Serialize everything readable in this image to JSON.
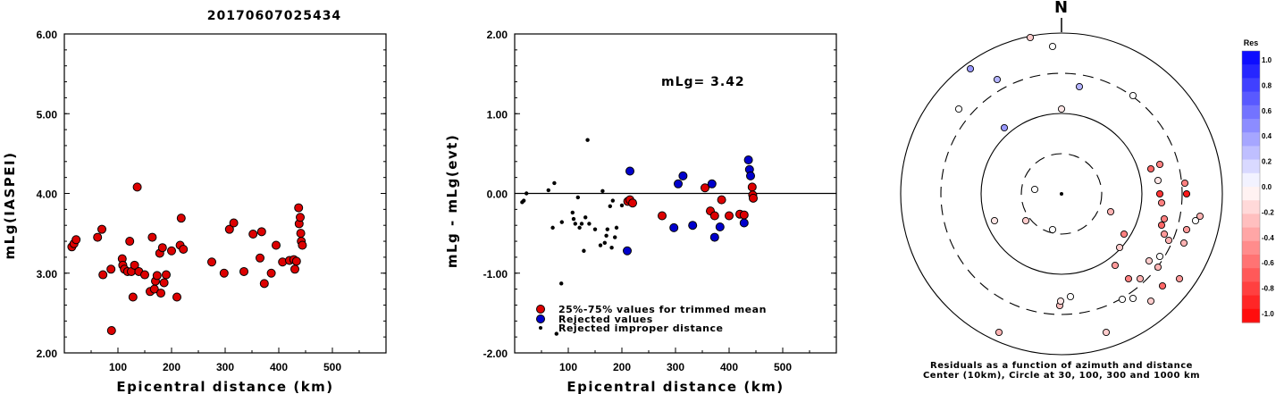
{
  "title": "20170607025434",
  "colors": {
    "event": "#dd0000",
    "rejected": "#0000cc",
    "improper": "#000000",
    "positive_res": "#0000ff",
    "negative_res": "#ff0000"
  },
  "chart_data": [
    {
      "name": "left",
      "type": "scatter",
      "xlabel": "Epicentral distance (km)",
      "ylabel": "mLg(IASPEI)",
      "xlim": [
        0,
        600
      ],
      "ylim": [
        2.0,
        6.0
      ],
      "xticks": [
        "100",
        "200",
        "300",
        "400",
        "500"
      ],
      "yticks": [
        "2.00",
        "3.00",
        "4.00",
        "5.00",
        "6.00"
      ],
      "points": [
        [
          14,
          3.33
        ],
        [
          18,
          3.37
        ],
        [
          22,
          3.42
        ],
        [
          62,
          3.45
        ],
        [
          70,
          3.55
        ],
        [
          72,
          2.98
        ],
        [
          87,
          3.05
        ],
        [
          88,
          2.28
        ],
        [
          108,
          3.18
        ],
        [
          109,
          3.1
        ],
        [
          112,
          3.05
        ],
        [
          118,
          3.02
        ],
        [
          122,
          3.4
        ],
        [
          125,
          3.02
        ],
        [
          128,
          2.7
        ],
        [
          131,
          3.1
        ],
        [
          136,
          4.08
        ],
        [
          139,
          3.02
        ],
        [
          150,
          2.98
        ],
        [
          160,
          2.77
        ],
        [
          164,
          3.45
        ],
        [
          168,
          2.8
        ],
        [
          170,
          2.9
        ],
        [
          173,
          2.97
        ],
        [
          178,
          3.25
        ],
        [
          180,
          2.75
        ],
        [
          183,
          3.32
        ],
        [
          186,
          2.88
        ],
        [
          190,
          2.98
        ],
        [
          200,
          3.28
        ],
        [
          210,
          2.7
        ],
        [
          216,
          3.35
        ],
        [
          218,
          3.69
        ],
        [
          222,
          3.3
        ],
        [
          275,
          3.14
        ],
        [
          298,
          3.0
        ],
        [
          308,
          3.55
        ],
        [
          316,
          3.63
        ],
        [
          335,
          3.02
        ],
        [
          352,
          3.49
        ],
        [
          365,
          3.19
        ],
        [
          368,
          3.52
        ],
        [
          373,
          2.87
        ],
        [
          386,
          3.0
        ],
        [
          395,
          3.35
        ],
        [
          407,
          3.14
        ],
        [
          420,
          3.16
        ],
        [
          428,
          3.17
        ],
        [
          430,
          3.05
        ],
        [
          433,
          3.15
        ],
        [
          437,
          3.82
        ],
        [
          438,
          3.62
        ],
        [
          440,
          3.7
        ],
        [
          441,
          3.5
        ],
        [
          442,
          3.4
        ],
        [
          444,
          3.35
        ]
      ]
    },
    {
      "name": "middle",
      "type": "scatter",
      "xlabel": "Epicentral distance (km)",
      "ylabel": "mLg - mLg(evt)",
      "annotation": "mLg= 3.42",
      "xlim": [
        0,
        600
      ],
      "ylim": [
        -2.0,
        2.0
      ],
      "xticks": [
        "100",
        "200",
        "300",
        "400",
        "500"
      ],
      "yticks": [
        "-2.00",
        "-1.00",
        "0.00",
        "1.00",
        "2.00"
      ],
      "legend": [
        "25%-75% values for trimmed mean",
        "Rejected values",
        "Rejected improper distance"
      ],
      "kept": [
        [
          211,
          -0.1
        ],
        [
          215,
          -0.08
        ],
        [
          220,
          -0.12
        ],
        [
          275,
          -0.28
        ],
        [
          355,
          0.07
        ],
        [
          365,
          -0.22
        ],
        [
          373,
          -0.28
        ],
        [
          386,
          -0.08
        ],
        [
          400,
          -0.28
        ],
        [
          420,
          -0.26
        ],
        [
          428,
          -0.27
        ],
        [
          443,
          0.08
        ],
        [
          444,
          -0.02
        ],
        [
          445,
          -0.06
        ]
      ],
      "rejected": [
        [
          215,
          0.28
        ],
        [
          210,
          -0.72
        ],
        [
          297,
          -0.43
        ],
        [
          305,
          0.12
        ],
        [
          314,
          0.22
        ],
        [
          332,
          -0.4
        ],
        [
          368,
          0.12
        ],
        [
          373,
          -0.55
        ],
        [
          383,
          -0.42
        ],
        [
          428,
          -0.37
        ],
        [
          436,
          0.42
        ],
        [
          438,
          0.3
        ],
        [
          440,
          0.22
        ]
      ],
      "improper": [
        [
          14,
          -0.11
        ],
        [
          17,
          -0.09
        ],
        [
          22,
          0.0
        ],
        [
          63,
          0.04
        ],
        [
          71,
          -0.43
        ],
        [
          74,
          0.13
        ],
        [
          78,
          -1.76
        ],
        [
          87,
          -1.13
        ],
        [
          88,
          -0.36
        ],
        [
          108,
          -0.24
        ],
        [
          110,
          -0.32
        ],
        [
          113,
          -0.38
        ],
        [
          118,
          -0.05
        ],
        [
          121,
          -0.43
        ],
        [
          125,
          -0.38
        ],
        [
          129,
          -0.72
        ],
        [
          132,
          -0.3
        ],
        [
          136,
          0.67
        ],
        [
          139,
          -0.38
        ],
        [
          150,
          -0.45
        ],
        [
          160,
          -0.65
        ],
        [
          164,
          0.03
        ],
        [
          168,
          -0.62
        ],
        [
          171,
          -0.53
        ],
        [
          173,
          -0.45
        ],
        [
          178,
          -0.16
        ],
        [
          181,
          -0.68
        ],
        [
          183,
          -0.09
        ],
        [
          187,
          -0.55
        ],
        [
          190,
          -0.43
        ],
        [
          200,
          -0.15
        ]
      ]
    },
    {
      "name": "right",
      "type": "scatter",
      "north_label": "N",
      "colorbar_title": "Res",
      "colorbar_ticks": [
        "1.0",
        "0.8",
        "0.6",
        "0.4",
        "0.2",
        "0.0",
        "-0.2",
        "-0.4",
        "-0.6",
        "-0.8",
        "-1.0"
      ],
      "caption": [
        "Residuals as a function of azimuth and distance",
        "Center (10km), Circle at 30, 100, 300 and 1000 km"
      ],
      "points_xy_res": [
        [
          -115,
          95,
          0.0
        ],
        [
          -75,
          -30,
          -0.1
        ],
        [
          -70,
          -155,
          -0.3
        ],
        [
          -30,
          5,
          0.0
        ],
        [
          -10,
          -40,
          0.0
        ],
        [
          -2,
          -125,
          -0.25
        ],
        [
          100,
          -120,
          -0.2
        ],
        [
          80,
          -117,
          0.0
        ],
        [
          68,
          -118,
          0.0
        ],
        [
          60,
          -80,
          -0.4
        ],
        [
          65,
          -60,
          -0.2
        ],
        [
          55,
          -20,
          -0.3
        ],
        [
          70,
          -45,
          -0.5
        ],
        [
          75,
          -95,
          -0.5
        ],
        [
          88,
          -95,
          -0.3
        ],
        [
          100,
          28,
          -0.6
        ],
        [
          108,
          15,
          -0.1
        ],
        [
          110,
          0,
          -0.8
        ],
        [
          112,
          -10,
          -0.5
        ],
        [
          115,
          -28,
          -0.5
        ],
        [
          112,
          -35,
          -0.6
        ],
        [
          115,
          -45,
          -0.4
        ],
        [
          120,
          -52,
          -0.3
        ],
        [
          98,
          -75,
          -0.2
        ],
        [
          110,
          -70,
          0.0
        ],
        [
          108,
          -82,
          -0.3
        ],
        [
          113,
          -103,
          -0.6
        ],
        [
          132,
          -95,
          -0.4
        ],
        [
          137,
          -55,
          -0.3
        ],
        [
          140,
          -40,
          -0.4
        ],
        [
          150,
          -30,
          0.0
        ],
        [
          155,
          -25,
          -0.3
        ],
        [
          138,
          12,
          -0.5
        ],
        [
          140,
          0,
          -0.9
        ],
        [
          110,
          33,
          -0.5
        ],
        [
          0,
          95,
          -0.1
        ],
        [
          -40,
          -30,
          -0.2
        ],
        [
          -64,
          74,
          0.4
        ],
        [
          -72,
          128,
          0.3
        ],
        [
          -102,
          140,
          0.4
        ],
        [
          20,
          120,
          0.3
        ],
        [
          80,
          110,
          0.0
        ],
        [
          10,
          -115,
          0.0
        ],
        [
          -1,
          -120,
          -0.1
        ],
        [
          50,
          -155,
          -0.2
        ],
        [
          -35,
          175,
          -0.2
        ],
        [
          -10,
          165,
          0.0
        ]
      ],
      "points_polar": [
        [
          -148,
          10,
          -0.1
        ],
        [
          -115,
          10,
          0.0
        ]
      ]
    }
  ]
}
